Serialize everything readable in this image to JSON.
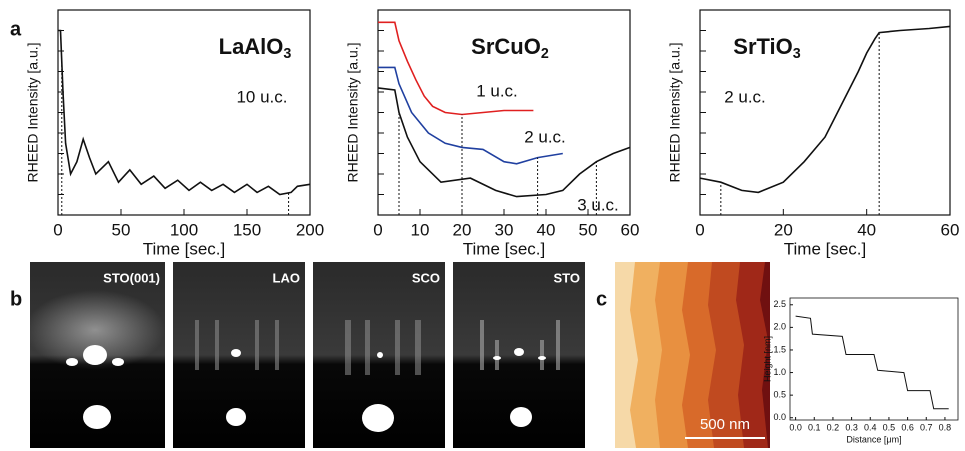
{
  "panel_labels": [
    "a",
    "b",
    "c"
  ],
  "rheed_labels": [
    "STO(001)",
    "LAO",
    "SCO",
    "STO"
  ],
  "afm": {
    "scale_bar": "500 nm"
  },
  "chart_data": [
    {
      "type": "line",
      "title": "LaAlO3",
      "xlabel": "Time [sec.]",
      "ylabel": "RHEED Intensity [a.u.]",
      "xlim": [
        0,
        200
      ],
      "xticks": [
        0,
        50,
        100,
        150,
        200
      ],
      "ylim": [
        0,
        10
      ],
      "yticks": [
        1,
        2,
        3,
        4,
        5,
        6,
        7,
        8,
        9
      ],
      "series": [
        {
          "name": "10 u.c.",
          "color": "#111111",
          "x": [
            0,
            2,
            4,
            6,
            10,
            15,
            20,
            25,
            30,
            40,
            48,
            57,
            66,
            76,
            85,
            95,
            104,
            113,
            122,
            131,
            140,
            150,
            158,
            167,
            176,
            185,
            190,
            200
          ],
          "values": [
            9.0,
            9.0,
            6.0,
            3.5,
            2.0,
            2.6,
            3.7,
            2.8,
            2.0,
            2.6,
            1.6,
            2.2,
            1.5,
            1.9,
            1.3,
            1.7,
            1.2,
            1.6,
            1.2,
            1.5,
            1.1,
            1.5,
            1.1,
            1.4,
            1.0,
            1.1,
            1.4,
            1.5
          ],
          "markers": [
            3,
            183
          ]
        }
      ]
    },
    {
      "type": "line",
      "title": "SrCuO2",
      "xlabel": "Time [sec.]",
      "ylabel": "RHEED Intensity [a.u.]",
      "xlim": [
        0,
        60
      ],
      "xticks": [
        0,
        10,
        20,
        30,
        40,
        50,
        60
      ],
      "ylim": [
        0,
        10
      ],
      "yticks": [
        1,
        2,
        3,
        4,
        5,
        6,
        7,
        8,
        9
      ],
      "series": [
        {
          "name": "1 u.c.",
          "color": "#e02020",
          "x": [
            0,
            4,
            5,
            7,
            9,
            11,
            13,
            16,
            20,
            25,
            30,
            37
          ],
          "values": [
            9.4,
            9.4,
            8.5,
            7.5,
            6.6,
            5.8,
            5.3,
            5.0,
            4.9,
            5.0,
            5.1,
            5.1
          ],
          "markers": [
            20
          ]
        },
        {
          "name": "2 u.c.",
          "color": "#2040a0",
          "x": [
            0,
            4,
            5,
            8,
            12,
            16,
            20,
            25,
            30,
            33,
            38,
            44
          ],
          "values": [
            7.2,
            7.2,
            6.4,
            5.0,
            4.0,
            3.5,
            3.3,
            3.2,
            2.6,
            2.5,
            2.8,
            3.0
          ],
          "markers": [
            38
          ]
        },
        {
          "name": "3 u.c.",
          "color": "#111111",
          "x": [
            0,
            4,
            5,
            7,
            10,
            15,
            22,
            28,
            33,
            40,
            44,
            48,
            52,
            56,
            60
          ],
          "values": [
            6.2,
            6.1,
            5.0,
            3.8,
            2.6,
            1.6,
            1.8,
            1.2,
            0.9,
            1.0,
            1.2,
            2.0,
            2.6,
            3.0,
            3.3
          ],
          "markers": [
            5,
            52
          ]
        }
      ]
    },
    {
      "type": "line",
      "title": "SrTiO3",
      "xlabel": "Time [sec.]",
      "ylabel": "RHEED Intensity [a.u.]",
      "xlim": [
        0,
        60
      ],
      "xticks": [
        0,
        20,
        40,
        60
      ],
      "ylim": [
        0,
        10
      ],
      "yticks": [
        1,
        2,
        3,
        4,
        5,
        6,
        7,
        8,
        9
      ],
      "series": [
        {
          "name": "2 u.c.",
          "color": "#111111",
          "x": [
            0,
            5,
            10,
            14,
            20,
            25,
            30,
            35,
            38,
            40,
            42,
            43,
            48,
            55,
            60
          ],
          "values": [
            1.8,
            1.6,
            1.2,
            1.1,
            1.6,
            2.6,
            3.8,
            5.8,
            7.0,
            7.9,
            8.6,
            8.9,
            9.0,
            9.1,
            9.2
          ],
          "markers": [
            5,
            43
          ]
        }
      ]
    },
    {
      "type": "line",
      "xlabel": "Distance [μm]",
      "ylabel": "Height [nm]",
      "xlim": [
        -0.03,
        0.87
      ],
      "ylim": [
        -0.05,
        2.65
      ],
      "xticks": [
        {
          "value": 0,
          "label": "0.0"
        },
        {
          "value": 0.1,
          "label": "0.1"
        },
        {
          "value": 0.2,
          "label": "0.2"
        },
        {
          "value": 0.3,
          "label": "0.3"
        },
        {
          "value": 0.4,
          "label": "0.4"
        },
        {
          "value": 0.5,
          "label": "0.5"
        },
        {
          "value": 0.6,
          "label": "0.6"
        },
        {
          "value": 0.7,
          "label": "0.7"
        },
        {
          "value": 0.8,
          "label": "0.8"
        }
      ],
      "yticks": [
        {
          "value": 0,
          "label": "0.0"
        },
        {
          "value": 0.5,
          "label": "0.5"
        },
        {
          "value": 1,
          "label": "1.0"
        },
        {
          "value": 1.5,
          "label": "1.5"
        },
        {
          "value": 2,
          "label": "2.0"
        },
        {
          "value": 2.5,
          "label": "2.5"
        }
      ],
      "series": [
        {
          "color": "#111111",
          "x": [
            0.0,
            0.08,
            0.09,
            0.25,
            0.27,
            0.42,
            0.44,
            0.58,
            0.6,
            0.72,
            0.74,
            0.82
          ],
          "values": [
            2.25,
            2.2,
            1.85,
            1.8,
            1.4,
            1.4,
            1.05,
            1.0,
            0.6,
            0.6,
            0.2,
            0.2
          ]
        }
      ]
    }
  ]
}
